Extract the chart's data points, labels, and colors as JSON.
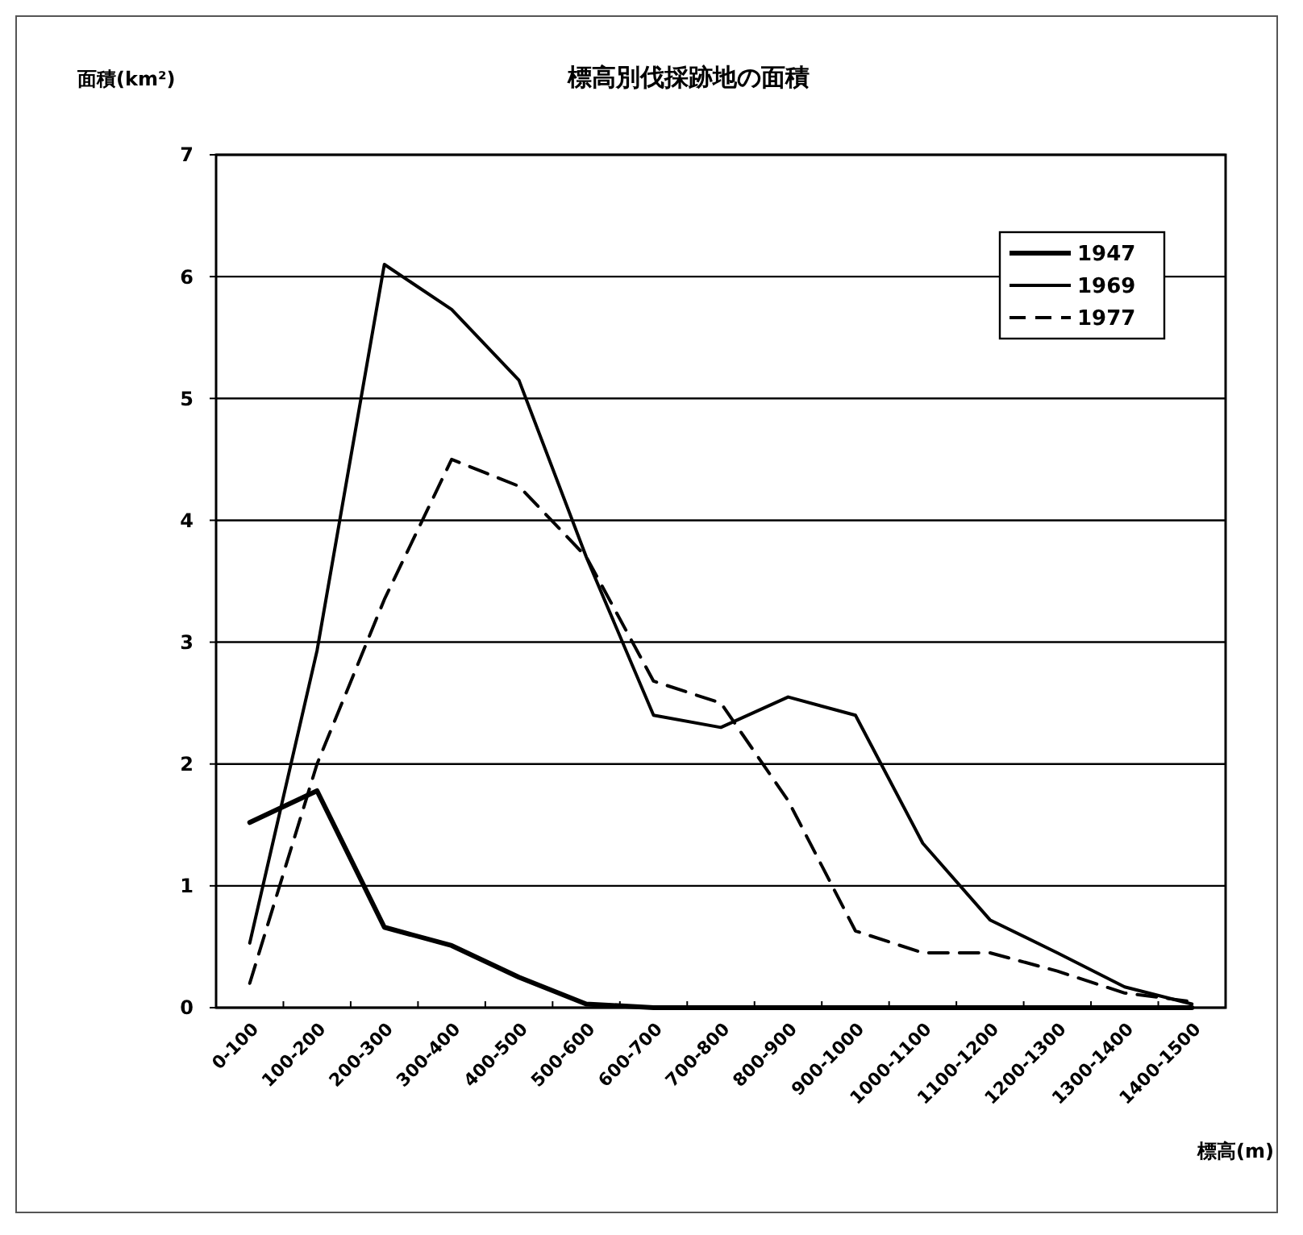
{
  "chart_data": {
    "type": "line",
    "title": "標高別伐採跡地の面積",
    "ylabel": "面積(km²)",
    "xlabel": "標高(m)",
    "categories": [
      "0-100",
      "100-200",
      "200-300",
      "300-400",
      "400-500",
      "500-600",
      "600-700",
      "700-800",
      "800-900",
      "900-1000",
      "1000-1100",
      "1100-1200",
      "1200-1300",
      "1300-1400",
      "1400-1500"
    ],
    "series": [
      {
        "name": "1947",
        "color": "#000000",
        "line_style": "solid",
        "values": [
          1.52,
          1.78,
          0.66,
          0.51,
          0.25,
          0.03,
          0,
          0,
          0,
          0,
          0,
          0,
          0,
          0,
          0
        ]
      },
      {
        "name": "1969",
        "color": "#000000",
        "line_style": "solid",
        "values": [
          0.53,
          2.93,
          6.1,
          5.73,
          5.15,
          3.7,
          2.4,
          2.3,
          2.55,
          2.4,
          1.35,
          0.72,
          0.45,
          0.17,
          0.03
        ]
      },
      {
        "name": "1977",
        "color": "#000000",
        "line_style": "dashed",
        "values": [
          0.2,
          2.0,
          3.35,
          4.5,
          4.28,
          3.7,
          2.68,
          2.5,
          1.7,
          0.63,
          0.45,
          0.45,
          0.3,
          0.12,
          0.05
        ]
      }
    ],
    "ylim": [
      0,
      7
    ],
    "yticks": [
      0,
      1,
      2,
      3,
      4,
      5,
      6,
      7
    ],
    "grid": "y",
    "legend": "top right",
    "marker": "none"
  }
}
